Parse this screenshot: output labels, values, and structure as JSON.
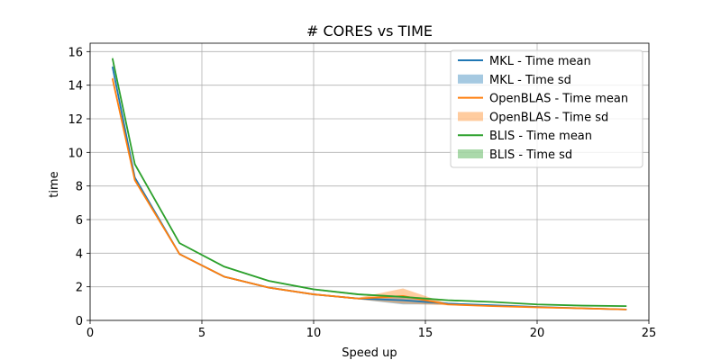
{
  "chart_data": {
    "type": "line",
    "title": "# CORES vs TIME",
    "xlabel": "Speed up",
    "ylabel": "time",
    "xlim": [
      0,
      25
    ],
    "ylim": [
      0,
      16.5
    ],
    "xticks": [
      0,
      5,
      10,
      15,
      20,
      25
    ],
    "yticks": [
      0,
      2,
      4,
      6,
      8,
      10,
      12,
      14,
      16
    ],
    "grid": true,
    "legend_position": "top-right",
    "x": [
      1,
      2,
      4,
      6,
      8,
      10,
      12,
      14,
      16,
      18,
      20,
      22,
      24
    ],
    "series": [
      {
        "name": "MKL - Time mean",
        "sd_name": "MKL - Time sd",
        "color": "#1f77b4",
        "values": [
          15.1,
          8.5,
          3.95,
          2.6,
          1.95,
          1.55,
          1.3,
          1.2,
          1.0,
          0.9,
          0.8,
          0.72,
          0.65
        ],
        "sd": [
          0.2,
          0.1,
          0.05,
          0.05,
          0.05,
          0.05,
          0.05,
          0.25,
          0.05,
          0.03,
          0.03,
          0.03,
          0.03
        ]
      },
      {
        "name": "OpenBLAS - Time mean",
        "sd_name": "OpenBLAS - Time sd",
        "color": "#ff7f0e",
        "values": [
          14.4,
          8.35,
          3.95,
          2.6,
          1.95,
          1.55,
          1.3,
          1.45,
          0.95,
          0.85,
          0.78,
          0.72,
          0.65
        ],
        "sd": [
          0.2,
          0.1,
          0.05,
          0.05,
          0.05,
          0.05,
          0.05,
          0.45,
          0.05,
          0.03,
          0.03,
          0.03,
          0.03
        ]
      },
      {
        "name": "BLIS - Time mean",
        "sd_name": "BLIS - Time sd",
        "color": "#2ca02c",
        "values": [
          15.6,
          9.3,
          4.6,
          3.2,
          2.35,
          1.85,
          1.55,
          1.4,
          1.2,
          1.1,
          0.95,
          0.88,
          0.85
        ],
        "sd": [
          0.15,
          0.1,
          0.05,
          0.05,
          0.05,
          0.05,
          0.05,
          0.05,
          0.05,
          0.03,
          0.03,
          0.03,
          0.03
        ]
      }
    ]
  }
}
